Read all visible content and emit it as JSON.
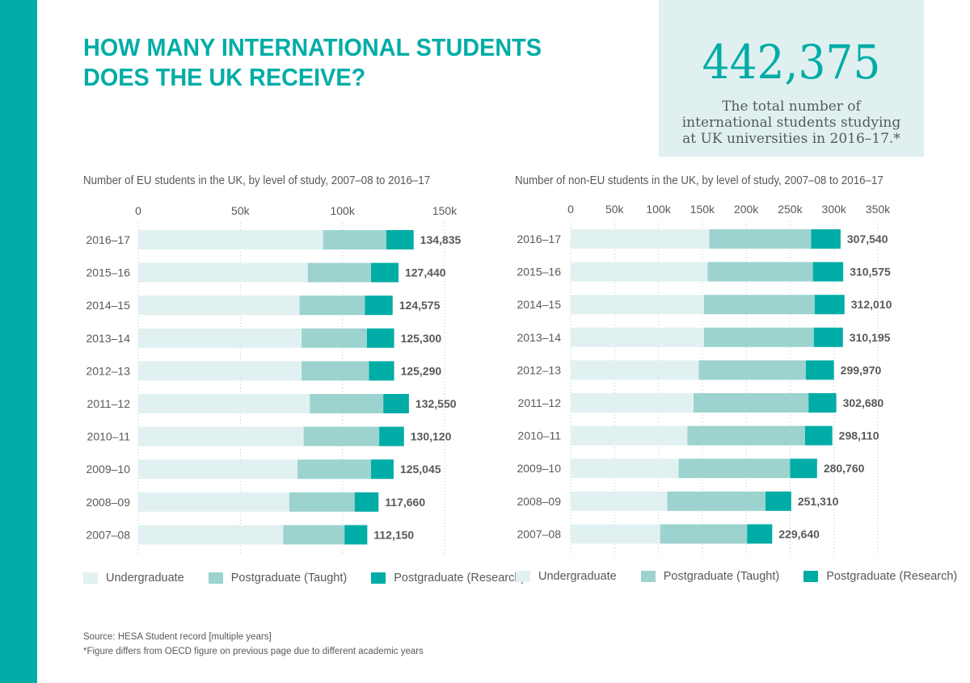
{
  "title_line1": "HOW MANY INTERNATIONAL STUDENTS",
  "title_line2": "DOES THE UK RECEIVE?",
  "headline": {
    "number": "442,375",
    "line1": "The total number of",
    "line2": "international students studying",
    "line3": "at UK universities in 2016–17.*"
  },
  "colors": {
    "accent": "#00ada6",
    "undergraduate": "#e1f1f1",
    "postgraduate_taught": "#9cd3cf",
    "postgraduate_research": "#00ada6",
    "box_bg": "#e0f0f0",
    "text": "#58595b"
  },
  "legend": {
    "undergraduate": "Undergraduate",
    "taught": "Postgraduate (Taught)",
    "research": "Postgraduate (Research)"
  },
  "source": {
    "line1": "Source: HESA Student record [multiple years]",
    "line2": "*Figure differs from OECD figure on previous page due to different academic years"
  },
  "chart_data": [
    {
      "type": "bar",
      "orientation": "horizontal",
      "stacked": true,
      "title": "Number of EU students in the UK, by level of study, 2007–08 to 2016–17",
      "xlim": [
        0,
        150000
      ],
      "xticks": [
        0,
        50000,
        100000,
        150000
      ],
      "xtick_labels": [
        "0",
        "50k",
        "100k",
        "150k"
      ],
      "categories": [
        "2016–17",
        "2015–16",
        "2014–15",
        "2013–14",
        "2012–13",
        "2011–12",
        "2010–11",
        "2009–10",
        "2008–09",
        "2007–08"
      ],
      "series": [
        {
          "name": "Undergraduate",
          "values": [
            90500,
            83000,
            79000,
            80000,
            80000,
            84000,
            81000,
            78000,
            74000,
            71000
          ]
        },
        {
          "name": "Postgraduate (Taught)",
          "values": [
            31000,
            31000,
            32000,
            32000,
            33000,
            36000,
            37000,
            36000,
            32000,
            30000
          ]
        },
        {
          "name": "Postgraduate (Research)",
          "values": [
            13335,
            13440,
            13575,
            13300,
            12290,
            12550,
            12120,
            11045,
            11660,
            11150
          ]
        }
      ],
      "totals": [
        134835,
        127440,
        124575,
        125300,
        125290,
        132550,
        130120,
        125045,
        117660,
        112150
      ],
      "total_labels": [
        "134,835",
        "127,440",
        "124,575",
        "125,300",
        "125,290",
        "132,550",
        "130,120",
        "125,045",
        "117,660",
        "112,150"
      ],
      "grid": true,
      "legend_position": "bottom"
    },
    {
      "type": "bar",
      "orientation": "horizontal",
      "stacked": true,
      "title": "Number of non-EU students in the UK, by level of study, 2007–08 to 2016–17",
      "xlim": [
        0,
        350000
      ],
      "xticks": [
        0,
        50000,
        100000,
        150000,
        200000,
        250000,
        300000,
        350000
      ],
      "xtick_labels": [
        "0",
        "50k",
        "100k",
        "150k",
        "200k",
        "250k",
        "300k",
        "350k"
      ],
      "categories": [
        "2016–17",
        "2015–16",
        "2014–15",
        "2013–14",
        "2012–13",
        "2011–12",
        "2010–11",
        "2009–10",
        "2008–09",
        "2007–08"
      ],
      "series": [
        {
          "name": "Undergraduate",
          "values": [
            158000,
            156000,
            152000,
            152000,
            146000,
            140000,
            133000,
            123000,
            110000,
            102000
          ]
        },
        {
          "name": "Postgraduate (Taught)",
          "values": [
            116000,
            120000,
            126000,
            125000,
            122000,
            131000,
            134000,
            127000,
            112000,
            99000
          ]
        },
        {
          "name": "Postgraduate (Research)",
          "values": [
            33540,
            34575,
            34010,
            33195,
            31970,
            31680,
            31110,
            30760,
            29310,
            28640
          ]
        }
      ],
      "totals": [
        307540,
        310575,
        312010,
        310195,
        299970,
        302680,
        298110,
        280760,
        251310,
        229640
      ],
      "total_labels": [
        "307,540",
        "310,575",
        "312,010",
        "310,195",
        "299,970",
        "302,680",
        "298,110",
        "280,760",
        "251,310",
        "229,640"
      ],
      "grid": true,
      "legend_position": "bottom"
    }
  ]
}
